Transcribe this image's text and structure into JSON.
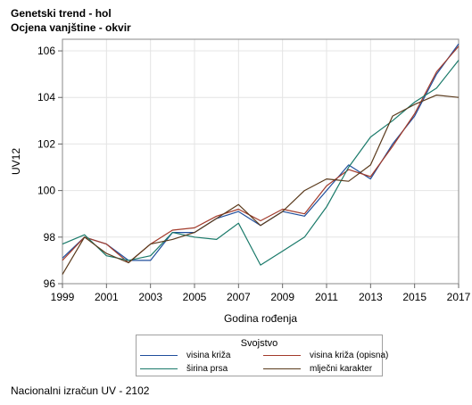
{
  "title": "Genetski trend - hol",
  "subtitle": "Ocjena vanjštine - okvir",
  "footnote": "Nacionalni izračun UV - 2102",
  "chart_data": {
    "type": "line",
    "xlabel": "Godina rođenja",
    "ylabel": "UV12",
    "xlim": [
      1999,
      2017
    ],
    "ylim": [
      96,
      106.5
    ],
    "xticks": [
      1999,
      2001,
      2003,
      2005,
      2007,
      2009,
      2011,
      2013,
      2015,
      2017
    ],
    "yticks": [
      96,
      98,
      100,
      102,
      104,
      106
    ],
    "grid": true,
    "legend_title": "Svojstvo",
    "legend_position": "bottom",
    "x": [
      1999,
      2000,
      2001,
      2002,
      2003,
      2004,
      2005,
      2006,
      2007,
      2008,
      2009,
      2010,
      2011,
      2012,
      2013,
      2014,
      2015,
      2016,
      2017
    ],
    "series": [
      {
        "name": "visina križa",
        "color": "#1f4e9c",
        "values": [
          97.1,
          98.0,
          97.7,
          97.0,
          97.0,
          98.2,
          98.2,
          98.8,
          99.1,
          98.5,
          99.1,
          98.9,
          100.0,
          101.1,
          100.5,
          102.0,
          103.2,
          105.0,
          106.3
        ]
      },
      {
        "name": "visina križa (opisna)",
        "color": "#a23a2a",
        "values": [
          97.0,
          98.0,
          97.7,
          96.9,
          97.7,
          98.3,
          98.4,
          98.9,
          99.2,
          98.7,
          99.2,
          99.0,
          100.2,
          100.9,
          100.6,
          101.9,
          103.3,
          105.1,
          106.2
        ]
      },
      {
        "name": "širina prsa",
        "color": "#1a7a6a",
        "values": [
          97.7,
          98.1,
          97.2,
          97.0,
          97.2,
          98.2,
          98.0,
          97.9,
          98.6,
          96.8,
          97.4,
          98.0,
          99.3,
          101.0,
          102.3,
          103.0,
          103.8,
          104.4,
          105.6
        ]
      },
      {
        "name": "mlječni karakter",
        "color": "#5a3a1c",
        "values": [
          96.4,
          98.0,
          97.3,
          96.9,
          97.7,
          97.9,
          98.2,
          98.8,
          99.4,
          98.5,
          99.1,
          100.0,
          100.5,
          100.4,
          101.1,
          103.2,
          103.7,
          104.1,
          104.0
        ]
      }
    ]
  }
}
